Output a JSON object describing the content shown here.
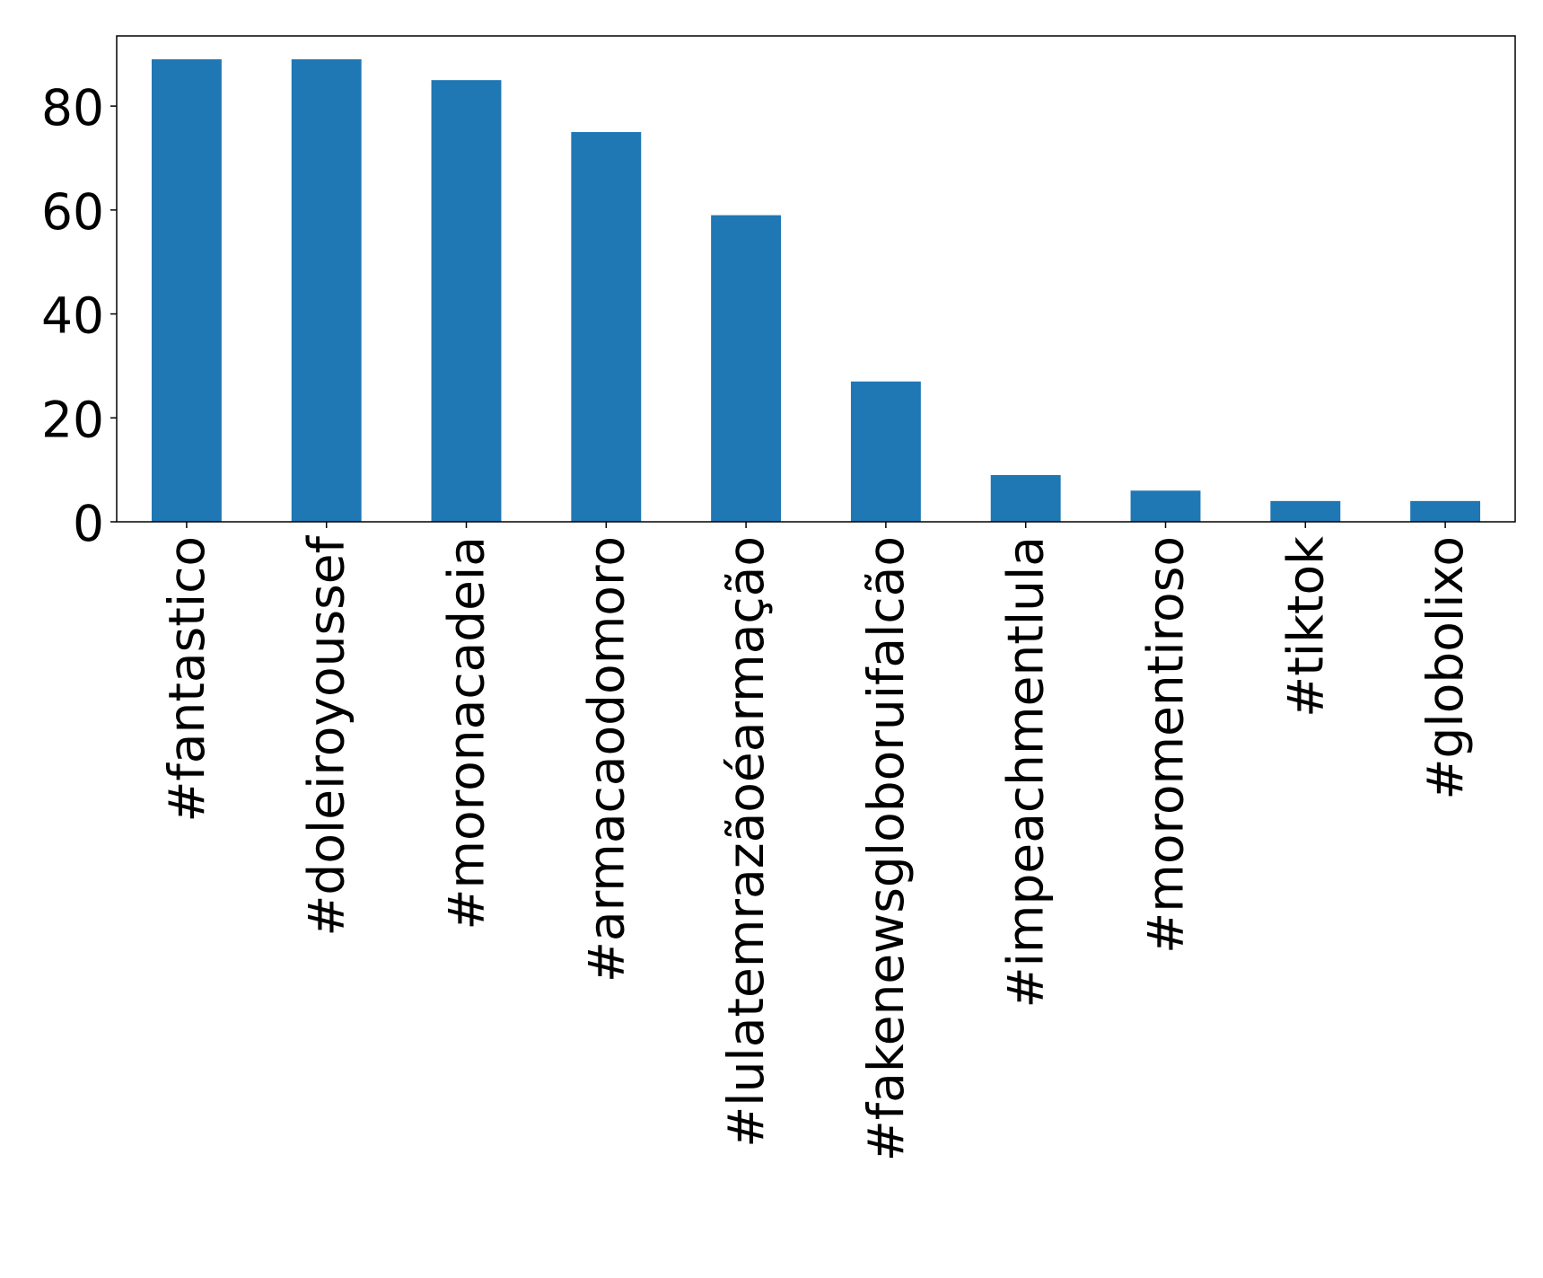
{
  "chart_data": {
    "type": "bar",
    "title": "",
    "xlabel": "",
    "ylabel": "",
    "categories": [
      "#fantastico",
      "#doleiroyoussef",
      "#moronacadeia",
      "#armacaodomoro",
      "#lulatemrazãoéarmação",
      "#fakenewsgloboruifalcão",
      "#impeachmentlula",
      "#moromentiroso",
      "#tiktok",
      "#globolixo"
    ],
    "values": [
      89,
      89,
      85,
      75,
      59,
      27,
      9,
      6,
      4,
      4
    ],
    "ylim": [
      0,
      93.5
    ],
    "yticks": [
      0,
      20,
      40,
      60,
      80
    ],
    "grid": false,
    "legend": "none",
    "bar_color": "#1f77b4"
  }
}
